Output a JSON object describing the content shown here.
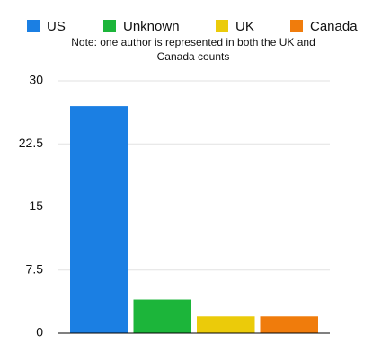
{
  "chart_data": {
    "type": "bar",
    "note": "Note: one author is represented in both the UK and Canada counts",
    "categories": [
      null
    ],
    "series": [
      {
        "name": "US",
        "color": "#1b7fe3",
        "values": [
          27
        ]
      },
      {
        "name": "Unknown",
        "color": "#1cb53a",
        "values": [
          4
        ]
      },
      {
        "name": "UK",
        "color": "#ebcb0a",
        "values": [
          2
        ]
      },
      {
        "name": "Canada",
        "color": "#f07c0c",
        "values": [
          2
        ]
      }
    ],
    "ylim": [
      0,
      30
    ],
    "yticks": [
      0,
      7.5,
      15,
      22.5,
      30
    ],
    "grid": true,
    "legend": "top"
  }
}
